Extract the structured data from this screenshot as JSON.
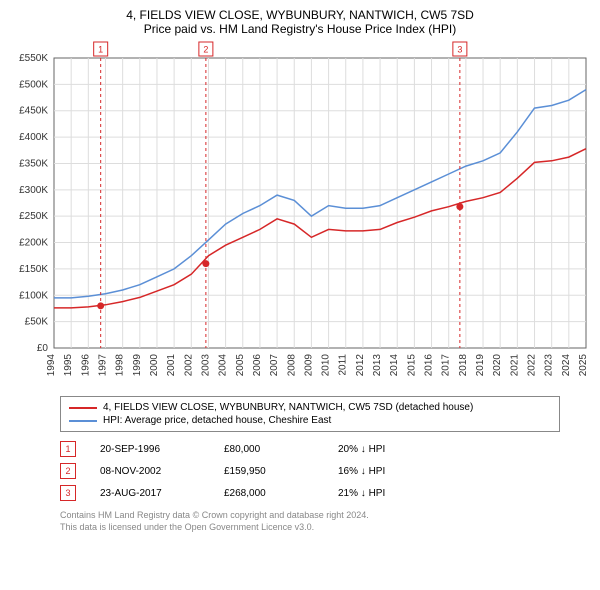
{
  "title_line1": "4, FIELDS VIEW CLOSE, WYBUNBURY, NANTWICH, CW5 7SD",
  "title_line2": "Price paid vs. HM Land Registry's House Price Index (HPI)",
  "chart": {
    "type": "line",
    "background_color": "#ffffff",
    "plot_background": "#ffffff",
    "grid_color": "#dddddd",
    "axis_color": "#666666",
    "font_size_ticks": 10,
    "x_years": [
      1994,
      1995,
      1996,
      1997,
      1998,
      1999,
      2000,
      2001,
      2002,
      2003,
      2004,
      2005,
      2006,
      2007,
      2008,
      2009,
      2010,
      2011,
      2012,
      2013,
      2014,
      2015,
      2016,
      2017,
      2018,
      2019,
      2020,
      2021,
      2022,
      2023,
      2024,
      2025
    ],
    "xlim": [
      1994,
      2025
    ],
    "ylim": [
      0,
      550000
    ],
    "ytick_step": 50000,
    "ytick_labels": [
      "£0",
      "£50K",
      "£100K",
      "£150K",
      "£200K",
      "£250K",
      "£300K",
      "£350K",
      "£400K",
      "£450K",
      "£500K",
      "£550K"
    ],
    "series": [
      {
        "name": "HPI: Average price, detached house, Cheshire East",
        "color": "#5b8fd6",
        "line_width": 1.5,
        "data": [
          [
            1994,
            95000
          ],
          [
            1995,
            95000
          ],
          [
            1996,
            98000
          ],
          [
            1997,
            103000
          ],
          [
            1998,
            110000
          ],
          [
            1999,
            120000
          ],
          [
            2000,
            135000
          ],
          [
            2001,
            150000
          ],
          [
            2002,
            175000
          ],
          [
            2003,
            205000
          ],
          [
            2004,
            235000
          ],
          [
            2005,
            255000
          ],
          [
            2006,
            270000
          ],
          [
            2007,
            290000
          ],
          [
            2008,
            280000
          ],
          [
            2009,
            250000
          ],
          [
            2010,
            270000
          ],
          [
            2011,
            265000
          ],
          [
            2012,
            265000
          ],
          [
            2013,
            270000
          ],
          [
            2014,
            285000
          ],
          [
            2015,
            300000
          ],
          [
            2016,
            315000
          ],
          [
            2017,
            330000
          ],
          [
            2018,
            345000
          ],
          [
            2019,
            355000
          ],
          [
            2020,
            370000
          ],
          [
            2021,
            410000
          ],
          [
            2022,
            455000
          ],
          [
            2023,
            460000
          ],
          [
            2024,
            470000
          ],
          [
            2025,
            490000
          ]
        ]
      },
      {
        "name": "4, FIELDS VIEW CLOSE, WYBUNBURY, NANTWICH, CW5 7SD (detached house)",
        "color": "#d62728",
        "line_width": 1.5,
        "data": [
          [
            1994,
            76000
          ],
          [
            1995,
            76000
          ],
          [
            1996,
            78000
          ],
          [
            1997,
            82000
          ],
          [
            1998,
            88000
          ],
          [
            1999,
            96000
          ],
          [
            2000,
            108000
          ],
          [
            2001,
            120000
          ],
          [
            2002,
            140000
          ],
          [
            2003,
            175000
          ],
          [
            2004,
            195000
          ],
          [
            2005,
            210000
          ],
          [
            2006,
            225000
          ],
          [
            2007,
            245000
          ],
          [
            2008,
            235000
          ],
          [
            2009,
            210000
          ],
          [
            2010,
            225000
          ],
          [
            2011,
            222000
          ],
          [
            2012,
            222000
          ],
          [
            2013,
            225000
          ],
          [
            2014,
            238000
          ],
          [
            2015,
            248000
          ],
          [
            2016,
            260000
          ],
          [
            2017,
            268000
          ],
          [
            2018,
            278000
          ],
          [
            2019,
            285000
          ],
          [
            2020,
            295000
          ],
          [
            2021,
            322000
          ],
          [
            2022,
            352000
          ],
          [
            2023,
            355000
          ],
          [
            2024,
            362000
          ],
          [
            2025,
            378000
          ]
        ]
      }
    ],
    "sale_markers": [
      {
        "n": "1",
        "year": 1996.72,
        "price": 80000,
        "color": "#d62728"
      },
      {
        "n": "2",
        "year": 2002.85,
        "price": 159950,
        "color": "#d62728"
      },
      {
        "n": "3",
        "year": 2017.65,
        "price": 268000,
        "color": "#d62728"
      }
    ],
    "sale_marker_line_color": "#d62728",
    "sale_marker_line_dash": "3,3",
    "sale_marker_box_border": "#d62728",
    "sale_marker_box_bg": "#ffffff",
    "sale_dot_radius": 3.5
  },
  "legend": {
    "items": [
      {
        "color": "#d62728",
        "label": "4, FIELDS VIEW CLOSE, WYBUNBURY, NANTWICH, CW5 7SD (detached house)"
      },
      {
        "color": "#5b8fd6",
        "label": "HPI: Average price, detached house, Cheshire East"
      }
    ]
  },
  "sales_table": [
    {
      "n": "1",
      "color": "#d62728",
      "date": "20-SEP-1996",
      "price": "£80,000",
      "delta": "20% ↓ HPI"
    },
    {
      "n": "2",
      "color": "#d62728",
      "date": "08-NOV-2002",
      "price": "£159,950",
      "delta": "16% ↓ HPI"
    },
    {
      "n": "3",
      "color": "#d62728",
      "date": "23-AUG-2017",
      "price": "£268,000",
      "delta": "21% ↓ HPI"
    }
  ],
  "footer_line1": "Contains HM Land Registry data © Crown copyright and database right 2024.",
  "footer_line2": "This data is licensed under the Open Government Licence v3.0."
}
